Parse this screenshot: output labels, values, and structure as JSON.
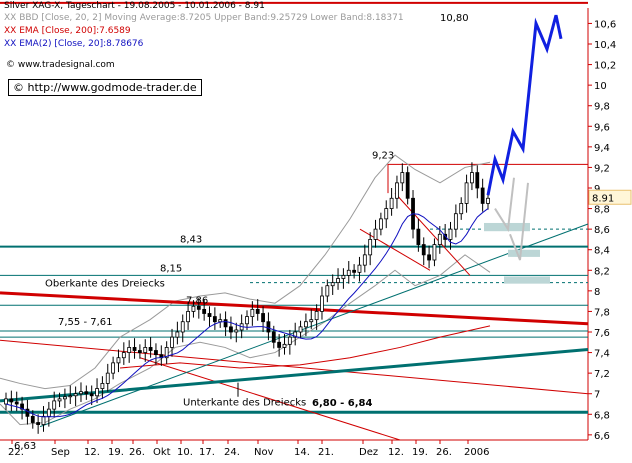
{
  "header": {
    "title_line": "Silver XAG-X, Tageschart - 19.08.2005 - 10.01.2006 - 8.91",
    "legend": [
      {
        "text": "XX BBD [Close, 20, 2] Moving Average:8.7205 Upper Band:9.25729 Lower Band:8.18371",
        "color": "#9a9a9a"
      },
      {
        "text": "XX EMA [Close, 200]:7.6589",
        "color": "#d00000"
      },
      {
        "text": "XX EMA(2) [Close, 20]:8.78676",
        "color": "#1010c0"
      }
    ],
    "watermark": "www.tradesignal.com",
    "url_box": "http://www.godmode-trader.de"
  },
  "chart_data": {
    "type": "candlestick",
    "title": "Silver XAG-X, Tageschart - 19.08.2005 - 10.01.2006 - 8.91",
    "ylim": [
      6.55,
      10.75
    ],
    "y_ticks": [
      "6,6",
      "6,8",
      "7",
      "7,2",
      "7,4",
      "7,6",
      "7,8",
      "8",
      "8,2",
      "8,4",
      "8,6",
      "8,8",
      "9",
      "9,2",
      "9,4",
      "9,6",
      "9,8",
      "10",
      "10,2",
      "10,4",
      "10,6"
    ],
    "x_tick_labels": [
      "22.",
      "Sep",
      "12.",
      "19.",
      "26.",
      "Okt",
      "10.",
      "17.",
      "24.",
      "Nov",
      "14.",
      "21.",
      "Dez",
      "12.",
      "19.",
      "26.",
      "2006"
    ],
    "last_price": "8.91",
    "annotations": [
      {
        "text": "10,80",
        "value": 10.8
      },
      {
        "text": "9,23",
        "value": 9.23
      },
      {
        "text": "8,43",
        "value": 8.43
      },
      {
        "text": "8,15",
        "value": 8.15
      },
      {
        "text": "7,86",
        "value": 7.86
      },
      {
        "text": "7,55 - 7,61",
        "value": 7.58
      },
      {
        "text": "6,80 - 6,84",
        "value": 6.82
      },
      {
        "text": "6,63",
        "value": 6.63
      },
      {
        "text": "Oberkante des Dreiecks"
      },
      {
        "text": "Unterkante des Dreiecks"
      }
    ],
    "ohlc_close": [
      6.95,
      6.92,
      6.9,
      6.85,
      6.78,
      6.72,
      6.7,
      6.78,
      6.85,
      6.93,
      6.95,
      6.97,
      6.98,
      7.0,
      7.02,
      7.0,
      6.98,
      7.05,
      7.1,
      7.2,
      7.3,
      7.35,
      7.4,
      7.45,
      7.42,
      7.4,
      7.45,
      7.42,
      7.38,
      7.35,
      7.45,
      7.55,
      7.6,
      7.7,
      7.8,
      7.85,
      7.82,
      7.78,
      7.75,
      7.7,
      7.72,
      7.65,
      7.6,
      7.62,
      7.68,
      7.75,
      7.82,
      7.78,
      7.7,
      7.6,
      7.5,
      7.45,
      7.48,
      7.55,
      7.6,
      7.65,
      7.7,
      7.72,
      7.8,
      7.95,
      8.05,
      8.08,
      8.12,
      8.15,
      8.2,
      8.18,
      8.25,
      8.35,
      8.5,
      8.6,
      8.7,
      8.8,
      8.9,
      9.05,
      9.15,
      8.9,
      8.6,
      8.45,
      8.35,
      8.3,
      8.45,
      8.55,
      8.5,
      8.6,
      8.75,
      8.85,
      9.05,
      9.15,
      9.0,
      8.85,
      8.9
    ],
    "projection": [
      [
        8.93,
        "2006"
      ],
      [
        9.28
      ],
      [
        9.1
      ],
      [
        9.55
      ],
      [
        9.38
      ],
      [
        10.6
      ],
      [
        10.35
      ],
      [
        10.68
      ],
      [
        10.45
      ]
    ],
    "lines": [
      {
        "name": "horizontal-10.8",
        "value": 10.8,
        "color": "#d00000"
      },
      {
        "name": "horizontal-8.43",
        "value": 8.43,
        "color": "#006060"
      },
      {
        "name": "horizontal-8.15",
        "value": 8.15,
        "color": "#006060"
      },
      {
        "name": "horizontal-7.86",
        "value": 7.86,
        "color": "#006060"
      },
      {
        "name": "horizontal-7.58",
        "value": 7.58,
        "color": "#006060"
      },
      {
        "name": "horizontal-6.82",
        "value": 6.82,
        "color": "#006060"
      }
    ],
    "colors": {
      "axis": "#d00000",
      "candle": "#000000",
      "ema200": "#d00000",
      "ema20": "#1010c0",
      "bb": "#9a9a9a",
      "projection": "#1020e0",
      "support": "#007070",
      "target_box": "#bcd6d6"
    }
  }
}
